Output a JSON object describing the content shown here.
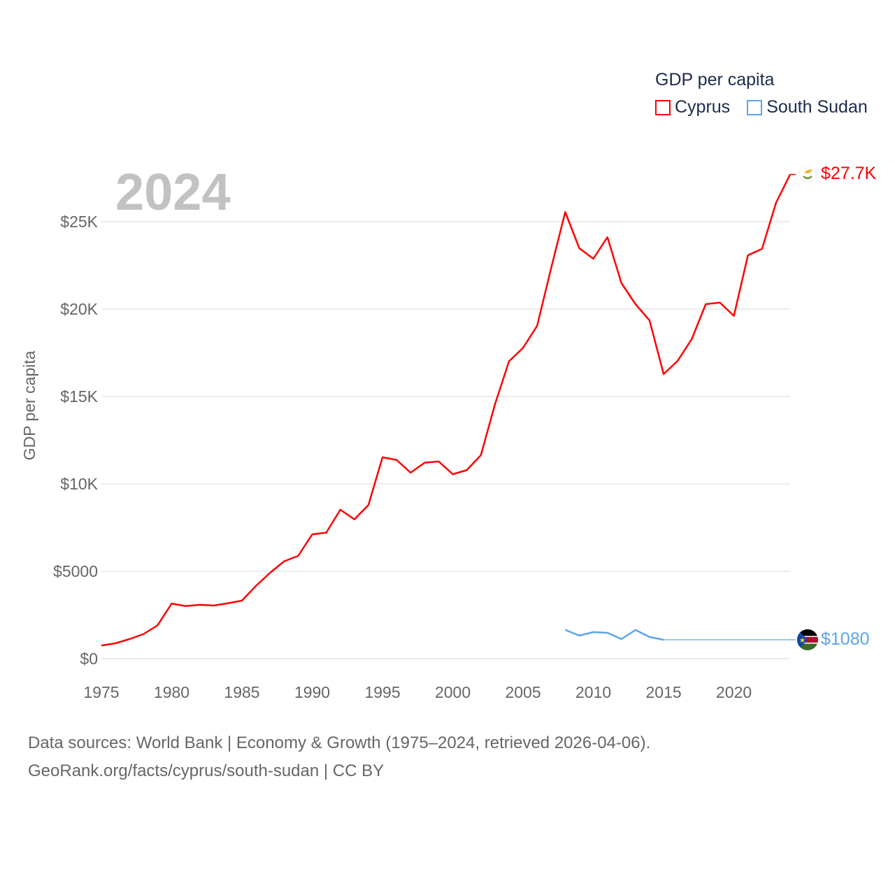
{
  "chart_data": {
    "type": "line",
    "title": "",
    "year_label": "2024",
    "xlabel": "",
    "ylabel": "GDP per capita",
    "xlim": [
      1975,
      2024
    ],
    "ylim": [
      0,
      27700
    ],
    "x_ticks": [
      1975,
      1980,
      1985,
      1990,
      1995,
      2000,
      2005,
      2010,
      2015,
      2020
    ],
    "y_ticks": [
      0,
      5000,
      10000,
      15000,
      20000,
      25000
    ],
    "y_tick_labels": [
      "$0",
      "$5000",
      "$10K",
      "$15K",
      "$20K",
      "$25K"
    ],
    "grid": true,
    "legend": {
      "title": "GDP per capita",
      "placement": "top-right"
    },
    "series": [
      {
        "name": "Cyprus",
        "color": "#ff0000",
        "end_label": "$27.7K",
        "flag": "cyprus-flag",
        "x": [
          1975,
          1976,
          1977,
          1978,
          1979,
          1980,
          1981,
          1982,
          1983,
          1984,
          1985,
          1986,
          1987,
          1988,
          1989,
          1990,
          1991,
          1992,
          1993,
          1994,
          1995,
          1996,
          1997,
          1998,
          1999,
          2000,
          2001,
          2002,
          2003,
          2004,
          2005,
          2006,
          2007,
          2008,
          2009,
          2010,
          2011,
          2012,
          2013,
          2014,
          2015,
          2016,
          2017,
          2018,
          2019,
          2020,
          2021,
          2022,
          2023,
          2024
        ],
        "values": [
          750,
          880,
          1120,
          1410,
          1910,
          3150,
          3010,
          3080,
          3040,
          3170,
          3320,
          4170,
          4910,
          5570,
          5880,
          7110,
          7210,
          8520,
          7970,
          8790,
          11520,
          11370,
          10640,
          11210,
          11280,
          10550,
          10790,
          11640,
          14550,
          17010,
          17780,
          19040,
          22350,
          25550,
          23480,
          22880,
          24110,
          21480,
          20280,
          19350,
          16280,
          17040,
          18280,
          20280,
          20370,
          19610,
          23080,
          23440,
          26080,
          27700
        ]
      },
      {
        "name": "South Sudan",
        "color": "#5aa5ec",
        "end_label": "$1080",
        "flag": "south-sudan-flag",
        "x": [
          2008,
          2009,
          2010,
          2011,
          2012,
          2013,
          2014,
          2015
        ],
        "values": [
          1650,
          1320,
          1520,
          1480,
          1120,
          1640,
          1240,
          1080
        ],
        "carried_forward_to": 2024
      }
    ]
  },
  "footer": {
    "line1": "Data sources: World Bank | Economy & Growth (1975–2024, retrieved 2026-04-06).",
    "line2": "GeoRank.org/facts/cyprus/south-sudan | CC BY"
  }
}
